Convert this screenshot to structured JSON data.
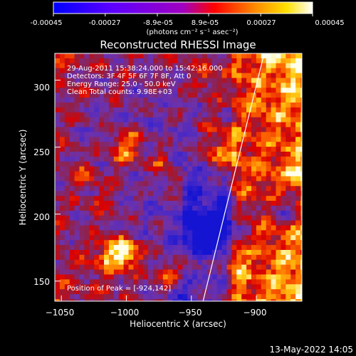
{
  "colorbar": {
    "ticks": [
      "-0.00045",
      "-0.00027",
      "-8.9e-05",
      "8.9e-05",
      "0.00027",
      "0.00045"
    ],
    "unit_label": "(photons cm⁻² s⁻¹ asec⁻²)",
    "range": [
      -0.00045,
      0.00045
    ],
    "colors": [
      "#0000ff",
      "#7a00ff",
      "#ff0000",
      "#ff8800",
      "#ffff00",
      "#ffffff"
    ]
  },
  "chart_data": {
    "type": "heatmap",
    "title": "Reconstructed RHESSI Image",
    "xlabel": "Heliocentric X (arcsec)",
    "ylabel": "Heliocentric Y (arcsec)",
    "xlim": [
      -1055,
      -865
    ],
    "ylim": [
      135,
      320
    ],
    "xticks": [
      -1050,
      -1000,
      -950,
      -900
    ],
    "yticks": [
      150,
      200,
      250,
      300
    ],
    "xtick_labels": [
      "−1050",
      "−1000",
      "−950",
      "−900"
    ],
    "ytick_labels": [
      "150",
      "200",
      "250",
      "300"
    ],
    "annotations": [
      "29-Aug-2011 15:38:24.000 to 15:42:16.000",
      "Detectors: 3F 4F 5F 6F 7F 8F, Att 0",
      "Energy Range: 25.0 - 50.0 keV",
      "Clean     Total counts: 9.98E+03"
    ],
    "peak_label": "Position of Peak = [-924,142]",
    "limb_line": [
      [
        -941,
        135
      ],
      [
        -894,
        320
      ]
    ]
  },
  "footer": {
    "timestamp": "13-May-2022 14:05"
  }
}
